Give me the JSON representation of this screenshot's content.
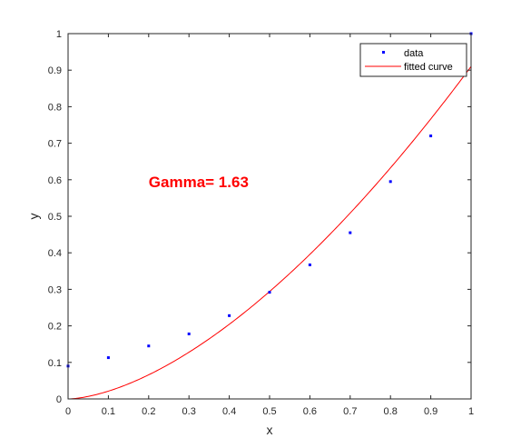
{
  "chart_data": {
    "type": "scatter",
    "xlabel": "x",
    "ylabel": "y",
    "xlim": [
      0,
      1
    ],
    "ylim": [
      0,
      1
    ],
    "xticks": [
      0,
      0.1,
      0.2,
      0.3,
      0.4,
      0.5,
      0.6,
      0.7,
      0.8,
      0.9,
      1
    ],
    "xtick_labels": [
      "0",
      "0.1",
      "0.2",
      "0.3",
      "0.4",
      "0.5",
      "0.6",
      "0.7",
      "0.8",
      "0.9",
      "1"
    ],
    "yticks": [
      0,
      0.1,
      0.2,
      0.3,
      0.4,
      0.5,
      0.6,
      0.7,
      0.8,
      0.9,
      1
    ],
    "ytick_labels": [
      "0",
      "0.1",
      "0.2",
      "0.3",
      "0.4",
      "0.5",
      "0.6",
      "0.7",
      "0.8",
      "0.9",
      "1"
    ],
    "grid": false,
    "legend_position": "top-right",
    "series": [
      {
        "name": "data",
        "kind": "points",
        "color": "#0000ff",
        "x": [
          0,
          0.1,
          0.2,
          0.3,
          0.4,
          0.5,
          0.6,
          0.7,
          0.8,
          0.9,
          1.0
        ],
        "y": [
          0.09,
          0.113,
          0.145,
          0.178,
          0.228,
          0.292,
          0.367,
          0.455,
          0.595,
          0.72,
          1.0
        ]
      },
      {
        "name": "fitted curve",
        "kind": "line",
        "color": "#ff0000",
        "function": "a*x^gamma",
        "a": 0.91,
        "gamma": 1.63
      }
    ],
    "annotation": {
      "text": "Gamma= 1.63",
      "x": 0.2,
      "y": 0.595,
      "color": "#ff0000"
    }
  }
}
